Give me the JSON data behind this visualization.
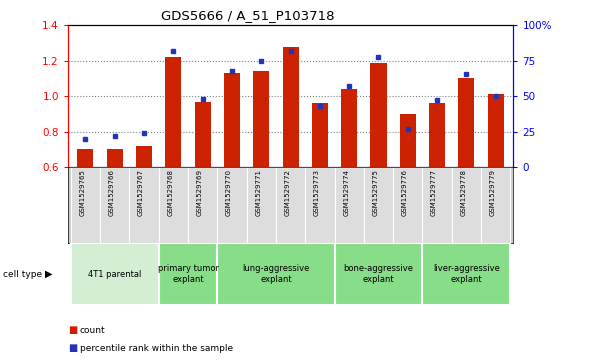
{
  "title": "GDS5666 / A_51_P103718",
  "samples": [
    "GSM1529765",
    "GSM1529766",
    "GSM1529767",
    "GSM1529768",
    "GSM1529769",
    "GSM1529770",
    "GSM1529771",
    "GSM1529772",
    "GSM1529773",
    "GSM1529774",
    "GSM1529775",
    "GSM1529776",
    "GSM1529777",
    "GSM1529778",
    "GSM1529779"
  ],
  "counts": [
    0.7,
    0.7,
    0.72,
    1.22,
    0.97,
    1.13,
    1.14,
    1.28,
    0.96,
    1.04,
    1.19,
    0.9,
    0.96,
    1.1,
    1.01
  ],
  "percentile_ranks": [
    20,
    22,
    24,
    82,
    48,
    68,
    75,
    82,
    43,
    57,
    78,
    27,
    47,
    66,
    50
  ],
  "cell_types": [
    {
      "label": "4T1 parental",
      "start": 0,
      "end": 3,
      "color": "#d4eed4"
    },
    {
      "label": "primary tumor\nexplant",
      "start": 3,
      "end": 5,
      "color": "#88dd88"
    },
    {
      "label": "lung-aggressive\nexplant",
      "start": 5,
      "end": 9,
      "color": "#88dd88"
    },
    {
      "label": "bone-aggressive\nexplant",
      "start": 9,
      "end": 12,
      "color": "#88dd88"
    },
    {
      "label": "liver-aggressive\nexplant",
      "start": 12,
      "end": 15,
      "color": "#88dd88"
    }
  ],
  "ylim_left": [
    0.6,
    1.4
  ],
  "ylim_right": [
    0,
    100
  ],
  "yticks_left": [
    0.6,
    0.8,
    1.0,
    1.2,
    1.4
  ],
  "yticks_right": [
    0,
    25,
    50,
    75,
    100
  ],
  "ytick_labels_right": [
    "0",
    "25",
    "50",
    "75",
    "100%"
  ],
  "grid_lines": [
    0.8,
    1.0,
    1.2
  ],
  "bar_color": "#cc2200",
  "percentile_color": "#2233bb",
  "bar_width": 0.55
}
